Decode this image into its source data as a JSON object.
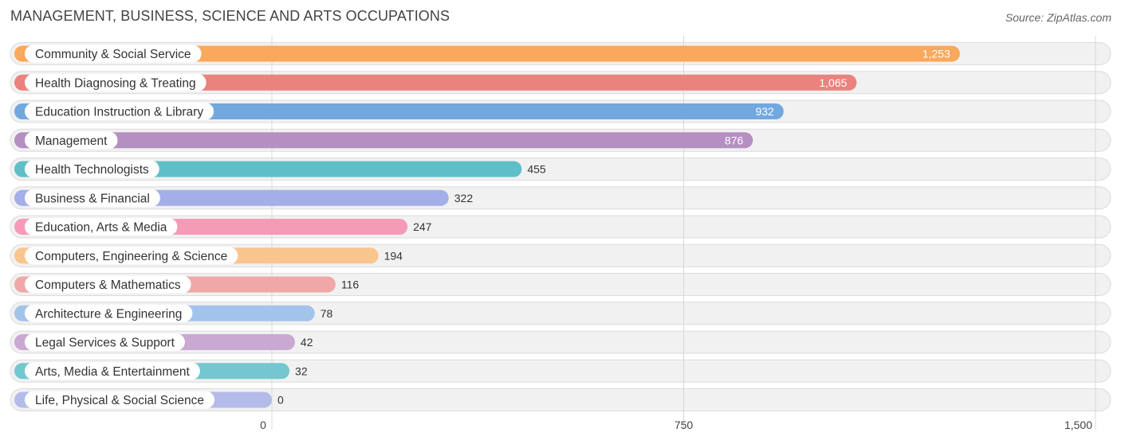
{
  "header": {
    "title": "MANAGEMENT, BUSINESS, SCIENCE AND ARTS OCCUPATIONS",
    "source": "Source: ZipAtlas.com"
  },
  "chart_data": {
    "type": "bar",
    "orientation": "horizontal",
    "title": "MANAGEMENT, BUSINESS, SCIENCE AND ARTS OCCUPATIONS",
    "xlabel": "",
    "ylabel": "",
    "xlim": [
      0,
      1500
    ],
    "ticks": [
      0,
      750,
      1500
    ],
    "tick_labels": [
      "0",
      "750",
      "1,500"
    ],
    "grid": true,
    "categories": [
      "Community & Social Service",
      "Health Diagnosing & Treating",
      "Education Instruction & Library",
      "Management",
      "Health Technologists",
      "Business & Financial",
      "Education, Arts & Media",
      "Computers, Engineering & Science",
      "Computers & Mathematics",
      "Architecture & Engineering",
      "Legal Services & Support",
      "Arts, Media & Entertainment",
      "Life, Physical & Social Science"
    ],
    "values": [
      1253,
      1065,
      932,
      876,
      455,
      322,
      247,
      194,
      116,
      78,
      42,
      32,
      0
    ],
    "value_labels": [
      "1,253",
      "1,065",
      "932",
      "876",
      "455",
      "322",
      "247",
      "194",
      "116",
      "78",
      "42",
      "32",
      "0"
    ],
    "colors": [
      "#f9a85c",
      "#ea827d",
      "#72a8de",
      "#b68fc2",
      "#5ebfc8",
      "#a4aee8",
      "#f59ab7",
      "#f9c58f",
      "#f0a8a6",
      "#a3c4ea",
      "#c9a8d2",
      "#72c8ce",
      "#b3bce9"
    ]
  }
}
